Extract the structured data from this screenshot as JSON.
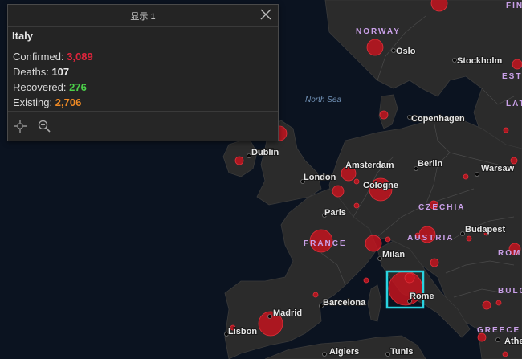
{
  "popup": {
    "title": "显示 1",
    "country": "Italy",
    "stats": [
      {
        "label": "Confirmed:",
        "value": "3,089",
        "color": "#e0243c"
      },
      {
        "label": "Deaths:",
        "value": "107",
        "color": "#e8e8e8"
      },
      {
        "label": "Recovered:",
        "value": "276",
        "color": "#4cd14a"
      },
      {
        "label": "Existing:",
        "value": "2,706",
        "color": "#f08a24"
      }
    ],
    "tools": [
      {
        "name": "pan-icon"
      },
      {
        "name": "zoom-in-icon"
      }
    ]
  },
  "map": {
    "sea_label": "North Sea",
    "cities": [
      {
        "label": "Oslo"
      },
      {
        "label": "Stockholm"
      },
      {
        "label": "Copenhagen"
      },
      {
        "label": "Dublin"
      },
      {
        "label": "Amsterdam"
      },
      {
        "label": "Berlin"
      },
      {
        "label": "Warsaw"
      },
      {
        "label": "London"
      },
      {
        "label": "Cologne"
      },
      {
        "label": "Paris"
      },
      {
        "label": "Budapest"
      },
      {
        "label": "Milan"
      },
      {
        "label": "Barcelona"
      },
      {
        "label": "Rome"
      },
      {
        "label": "Madrid"
      },
      {
        "label": "Lisbon"
      },
      {
        "label": "Algiers"
      },
      {
        "label": "Tunis"
      },
      {
        "label": "Athe"
      }
    ],
    "countries": [
      {
        "label": "NORWAY"
      },
      {
        "label": "FRANCE"
      },
      {
        "label": "CZECHIA"
      },
      {
        "label": "AUSTRIA"
      },
      {
        "label": "ROM"
      },
      {
        "label": "BULG"
      },
      {
        "label": "GREECE"
      },
      {
        "label": "FIN"
      },
      {
        "label": "ESTO"
      },
      {
        "label": "LATV"
      }
    ]
  },
  "colors": {
    "water": "#0b1320",
    "land": "#2b2b2b",
    "bubble": "#c8141e",
    "highlight": "#29d3e0"
  }
}
